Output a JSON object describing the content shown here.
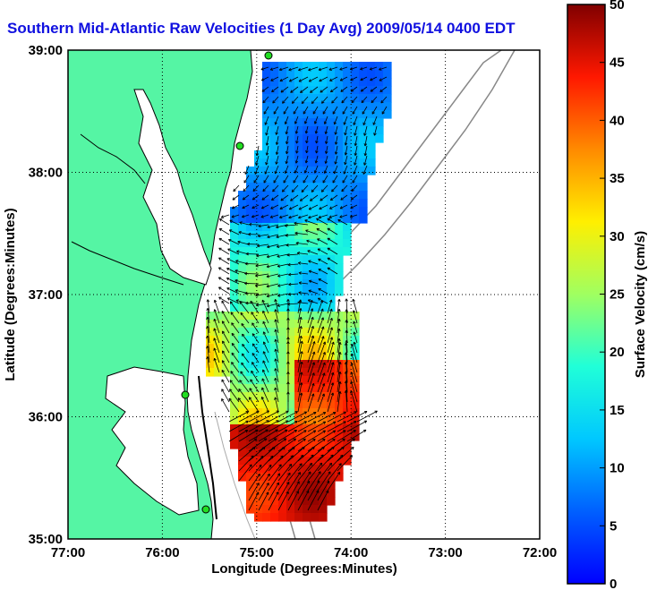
{
  "title": "Southern Mid-Atlantic Raw Velocities (1 Day Avg) 2009/05/14 0400 EDT",
  "map": {
    "xlabel": "Longitude (Degrees:Minutes)",
    "ylabel": "Latitude (Degrees:Minutes)",
    "x_ticks": [
      "77:00",
      "76:00",
      "75:00",
      "74:00",
      "73:00",
      "72:00"
    ],
    "y_ticks": [
      "39:00",
      "38:00",
      "37:00",
      "36:00",
      "35:00"
    ],
    "grid": "dotted",
    "land_color": "#55f5a4",
    "coast_color": "#000000",
    "station_color": "#22dd22"
  },
  "colorbar": {
    "label": "Surface Velocity (cm/s)",
    "ticks": [
      "0",
      "5",
      "10",
      "15",
      "20",
      "25",
      "30",
      "35",
      "40",
      "45",
      "50"
    ],
    "range": [
      0,
      50
    ],
    "colormap": "jet"
  }
}
